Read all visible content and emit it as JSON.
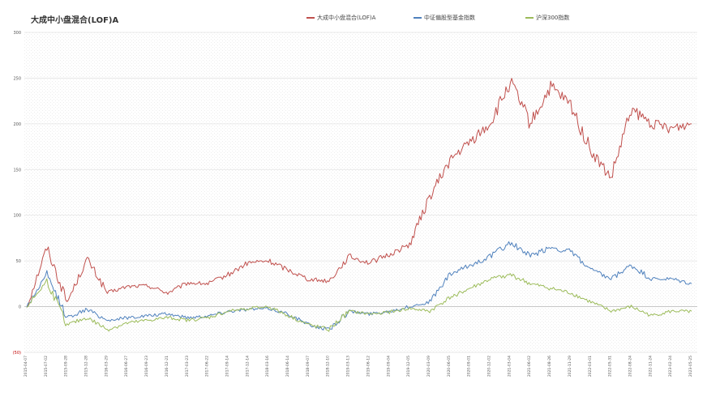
{
  "chart_data": {
    "type": "line",
    "title": "大成中小盘混合(LOF)A",
    "ylim": [
      -50,
      300
    ],
    "yticks": [
      "300",
      "250",
      "200",
      "150",
      "100",
      "50",
      "0",
      "(50)"
    ],
    "ytick_values": [
      300,
      250,
      200,
      150,
      100,
      50,
      0,
      -50
    ],
    "x": [
      "2015-04-07",
      "2015-07-02",
      "2015-09-28",
      "2015-12-28",
      "2016-03-29",
      "2016-06-27",
      "2016-09-23",
      "2016-12-21",
      "2017-03-23",
      "2017-06-22",
      "2017-09-14",
      "2017-12-14",
      "2018-03-16",
      "2018-06-14",
      "2018-09-07",
      "2018-12-10",
      "2019-03-13",
      "2019-06-12",
      "2019-09-04",
      "2019-12-05",
      "2020-03-09",
      "2020-06-05",
      "2020-09-01",
      "2020-12-02",
      "2021-03-04",
      "2021-06-02",
      "2021-08-26",
      "2021-11-29",
      "2022-03-01",
      "2022-05-31",
      "2022-08-24",
      "2022-11-24",
      "2023-02-24",
      "2023-05-25"
    ],
    "grid": true,
    "legend_position": "top",
    "series": [
      {
        "name": "大成中小盘混合(LOF)A",
        "color": "#C0504D",
        "values": [
          0,
          65,
          5,
          52,
          15,
          22,
          23,
          15,
          26,
          25,
          35,
          48,
          50,
          40,
          30,
          28,
          55,
          48,
          57,
          68,
          120,
          160,
          180,
          200,
          245,
          200,
          240,
          220,
          170,
          140,
          215,
          200,
          195,
          200
        ]
      },
      {
        "name": "中证偏股型基金指数",
        "color": "#4F81BD",
        "values": [
          0,
          35,
          -12,
          -3,
          -15,
          -12,
          -10,
          -8,
          -12,
          -10,
          -5,
          -3,
          -2,
          -8,
          -20,
          -25,
          -5,
          -8,
          -5,
          0,
          5,
          35,
          45,
          55,
          70,
          55,
          65,
          60,
          40,
          30,
          45,
          30,
          30,
          25
        ]
      },
      {
        "name": "沪深300指数",
        "color": "#9BBB59",
        "values": [
          0,
          28,
          -20,
          -12,
          -25,
          -18,
          -15,
          -12,
          -15,
          -12,
          -5,
          -2,
          0,
          -10,
          -20,
          -25,
          -5,
          -8,
          -6,
          -2,
          -5,
          10,
          20,
          30,
          35,
          25,
          20,
          15,
          5,
          -5,
          0,
          -10,
          -5,
          -5
        ]
      }
    ]
  }
}
